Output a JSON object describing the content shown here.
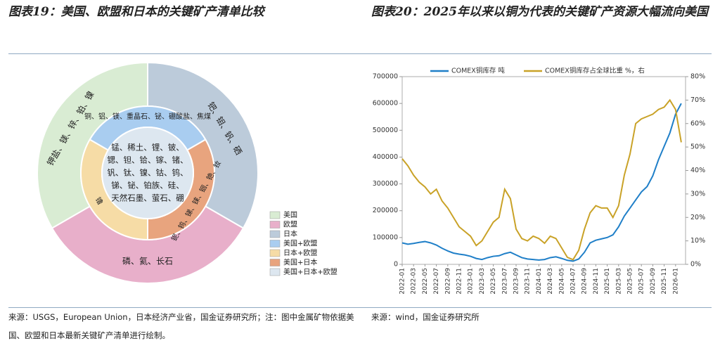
{
  "chart_data": [
    {
      "type": "nested-donut",
      "title": "图表19：美国、欧盟和日本的关键矿产清单比较",
      "legend": [
        {
          "name": "美国",
          "color": "#d9ecd3"
        },
        {
          "name": "欧盟",
          "color": "#e8afca"
        },
        {
          "name": "日本",
          "color": "#bccbda"
        },
        {
          "name": "美国+欧盟",
          "color": "#a9cdf0"
        },
        {
          "name": "日本+欧盟",
          "color": "#f6dca6"
        },
        {
          "name": "美国+日本",
          "color": "#e8a47e"
        },
        {
          "name": "美国+日本+欧盟",
          "color": "#dde7f0"
        }
      ],
      "outer": [
        {
          "label": "钯、钼、钒、硒",
          "color": "#bccbda"
        },
        {
          "label": "磷、氦、长石",
          "color": "#e8afca"
        },
        {
          "label": "钾盐、镁、锌、铂、镍",
          "color": "#d9ecd3"
        }
      ],
      "inner": [
        {
          "label": "铜、铝、镁、重晶石、铋、硼酸盐、焦煤",
          "color": "#a9cdf0"
        },
        {
          "label": "铌、钨、锑、铼、铟、铯、钕",
          "color": "#e8a47e"
        },
        {
          "label": "镥",
          "color": "#f6dca6"
        }
      ],
      "center": [
        "锰、稀土、锂、铍、",
        "锶、钽、铪、镓、锗、",
        "钒、钛、镍、钴、钨、",
        "锑、铋、铂族、硅、",
        "天然石墨、萤石、硼"
      ],
      "source": "来源：USGS，European Union，日本经济产业省，国金证券研究所；注：图中金属矿物依据美国、欧盟和日本最新关键矿产清单进行绘制。"
    },
    {
      "type": "line",
      "title": "图表20：2025年以来以铜为代表的关键矿产资源大幅流向美国",
      "categories": [
        "2022-01",
        null,
        "2022-03",
        null,
        "2022-05",
        null,
        "2022-07",
        null,
        "2022-09",
        null,
        "2022-11",
        null,
        "2023-01",
        null,
        "2023-03",
        null,
        "2023-05",
        null,
        "2023-07",
        null,
        "2023-09",
        null,
        "2023-11",
        null,
        "2024-01",
        null,
        "2024-03",
        null,
        "2024-05",
        null,
        "2024-07",
        null,
        "2024-09",
        null,
        "2024-11",
        null,
        "2025-01",
        null,
        "2025-03",
        null,
        "2025-05",
        null,
        "2025-07",
        null,
        "2025-09",
        null,
        "2025-11",
        null,
        "2026-01",
        null
      ],
      "series": [
        {
          "name": "COMEX铜库存 吨",
          "color": "#1f7fc8",
          "values": [
            80000,
            75000,
            78000,
            82000,
            85000,
            80000,
            72000,
            60000,
            50000,
            42000,
            38000,
            35000,
            30000,
            22000,
            18000,
            25000,
            30000,
            32000,
            40000,
            45000,
            35000,
            25000,
            20000,
            18000,
            16000,
            18000,
            25000,
            28000,
            22000,
            15000,
            12000,
            20000,
            45000,
            80000,
            90000,
            95000,
            100000,
            110000,
            140000,
            180000,
            210000,
            240000,
            270000,
            290000,
            330000,
            390000,
            440000,
            490000,
            560000,
            600000
          ]
        },
        {
          "name": "COMEX铜库存占全球比重 %，右",
          "color": "#c9a227",
          "axis": "y2",
          "values": [
            45,
            42,
            38,
            35,
            33,
            30,
            32,
            27,
            24,
            20,
            16,
            14,
            12,
            8,
            10,
            14,
            18,
            20,
            32,
            28,
            15,
            11,
            10,
            12,
            11,
            9,
            12,
            11,
            7,
            3,
            2,
            6,
            15,
            22,
            25,
            24,
            24,
            20,
            25,
            38,
            47,
            60,
            62,
            63,
            64,
            66,
            67,
            70,
            66,
            52
          ]
        }
      ],
      "ylim": [
        0,
        700000
      ],
      "yticks": [
        0,
        100000,
        200000,
        300000,
        400000,
        500000,
        600000,
        700000
      ],
      "y2lim": [
        0,
        80
      ],
      "y2ticks": [
        {
          "value": 0,
          "label": "0%"
        },
        {
          "value": 10,
          "label": "10%"
        },
        {
          "value": 20,
          "label": "20%"
        },
        {
          "value": 30,
          "label": "30%"
        },
        {
          "value": 40,
          "label": "40%"
        },
        {
          "value": 50,
          "label": "50%"
        },
        {
          "value": 60,
          "label": "60%"
        },
        {
          "value": 70,
          "label": "70%"
        },
        {
          "value": 80,
          "label": "80%"
        }
      ],
      "source": "来源：wind，国金证券研究所"
    }
  ]
}
